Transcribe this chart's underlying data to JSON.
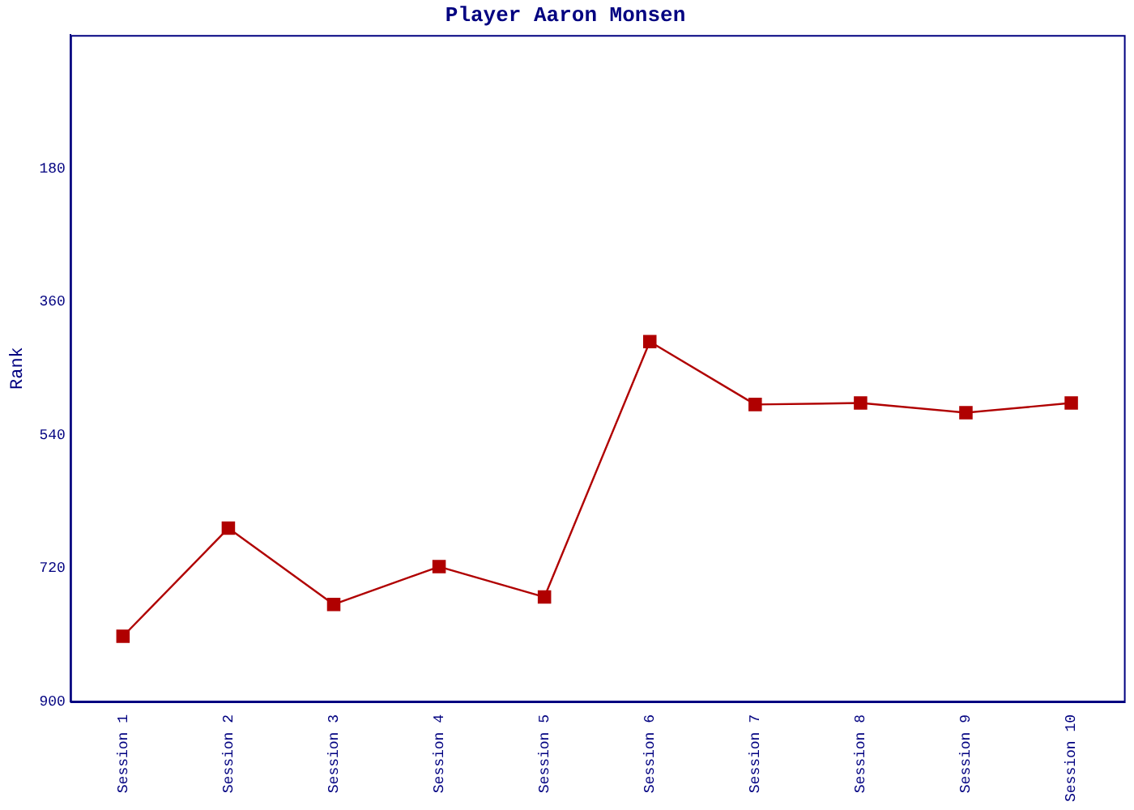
{
  "chart_data": {
    "type": "line",
    "title": "Player Aaron Monsen",
    "ylabel": "Rank",
    "categories": [
      "Session 1",
      "Session 2",
      "Session 3",
      "Session 4",
      "Session 5",
      "Session 6",
      "Session 7",
      "Session 8",
      "Session 9",
      "Session 10"
    ],
    "series": [
      {
        "color": "#b00000",
        "values": [
          812,
          666,
          769,
          718,
          759,
          414,
          499,
          497,
          510,
          497
        ]
      }
    ],
    "ylim": [
      900,
      0
    ],
    "yticks": [
      180,
      360,
      540,
      720,
      900
    ],
    "grid": false,
    "legend": false,
    "marker": "square",
    "line_style": "solid"
  }
}
